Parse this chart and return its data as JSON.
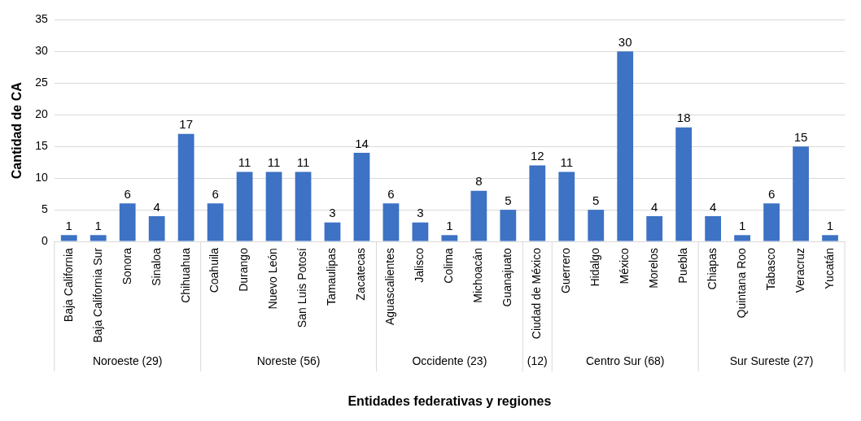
{
  "chart_data": {
    "type": "bar",
    "xlabel": "Entidades federativas y regiones",
    "ylabel": "Cantidad de CA",
    "categories": [
      "Baja California",
      "Baja California Sur",
      "Sonora",
      "Sinaloa",
      "Chihuahua",
      "Coahuila",
      "Durango",
      "Nuevo León",
      "San Luis Potosí",
      "Tamaulipas",
      "Zacatecas",
      "Aguascalientes",
      "Jalisco",
      "Colima",
      "Michoacán",
      "Guanajuato",
      "Ciudad de México",
      "Guerrero",
      "Hidalgo",
      "México",
      "Morelos",
      "Puebla",
      "Chiapas",
      "Quintana Roo",
      "Tabasco",
      "Veracruz",
      "Yucatán"
    ],
    "values": [
      1,
      1,
      6,
      4,
      17,
      6,
      11,
      11,
      11,
      3,
      14,
      6,
      3,
      1,
      8,
      5,
      12,
      11,
      5,
      30,
      4,
      18,
      4,
      1,
      6,
      15,
      1
    ],
    "color": "#3d72c4",
    "ylim": [
      0,
      35
    ],
    "yticks": [
      0,
      5,
      10,
      15,
      20,
      25,
      30,
      35
    ],
    "grid": "y",
    "data_labels": true,
    "legend": false,
    "annotations": [
      "Noroeste (29)",
      "Noreste (56)",
      "Occidente (23)",
      "(12)",
      "Centro Sur (68)",
      "Sur Sureste (27)"
    ]
  }
}
